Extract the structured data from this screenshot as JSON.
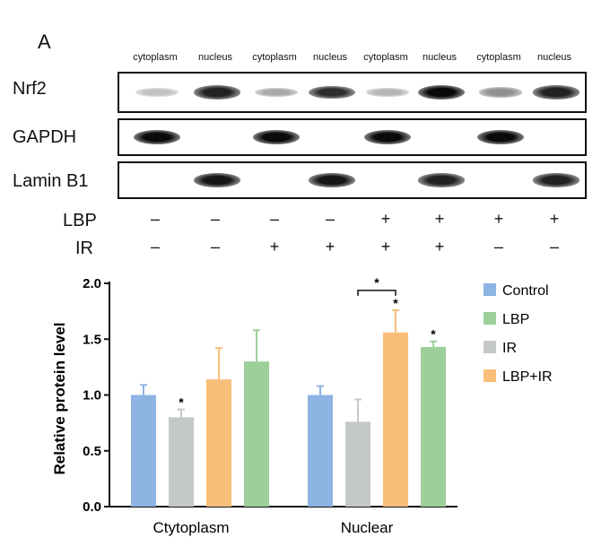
{
  "panel_label": "A",
  "lanes": [
    "cytoplasm",
    "nucleus",
    "cytoplasm",
    "nucleus",
    "cytoplasm",
    "nucleus",
    "cytoplasm",
    "nucleus"
  ],
  "blots": [
    {
      "label": "Nrf2",
      "band_intensity": [
        0.25,
        0.9,
        0.35,
        0.85,
        0.3,
        1.0,
        0.45,
        0.9
      ]
    },
    {
      "label": "GAPDH",
      "band_intensity": [
        1.0,
        0,
        1.0,
        0,
        1.0,
        0,
        1.0,
        0
      ]
    },
    {
      "label": "Lamin B1",
      "band_intensity": [
        0,
        0.95,
        0,
        0.95,
        0,
        0.9,
        0,
        0.9
      ]
    }
  ],
  "treatments": [
    {
      "label": "LBP",
      "signs": [
        "–",
        "–",
        "–",
        "–",
        "+",
        "+",
        "+",
        "+"
      ]
    },
    {
      "label": "IR",
      "signs": [
        "–",
        "–",
        "+",
        "+",
        "+",
        "+",
        "–",
        "–"
      ]
    }
  ],
  "colors": {
    "Control": "#8eb4e3",
    "LBP": "#9ccf9a",
    "IR": "#c4c8c9",
    "LBP+IR": "#f9bf7a",
    "axis": "#111111"
  },
  "chart_data": {
    "type": "bar",
    "categories": [
      "Ctytoplasm",
      "Nuclear"
    ],
    "ylabel": "Relative protein level",
    "ylim": [
      0,
      2.0
    ],
    "yticks": [
      "0.0",
      "0.5",
      "1.0",
      "1.5",
      "2.0"
    ],
    "ytick_values": [
      0,
      0.5,
      1.0,
      1.5,
      2.0
    ],
    "legend_position": "top-right",
    "series": [
      {
        "name": "Control",
        "values": [
          1.0,
          1.0
        ],
        "errors": [
          0.09,
          0.08
        ],
        "sig": [
          "",
          ""
        ]
      },
      {
        "name": "IR",
        "values": [
          0.8,
          0.76
        ],
        "errors": [
          0.07,
          0.2
        ],
        "sig": [
          "*",
          ""
        ]
      },
      {
        "name": "LBP+IR",
        "values": [
          1.14,
          1.56
        ],
        "errors": [
          0.28,
          0.2
        ],
        "sig": [
          "",
          "*"
        ]
      },
      {
        "name": "LBP",
        "values": [
          1.3,
          1.43
        ],
        "errors": [
          0.28,
          0.05
        ],
        "sig": [
          "",
          "*"
        ]
      }
    ],
    "legend_order": [
      "Control",
      "LBP",
      "IR",
      "LBP+IR"
    ],
    "bracket": {
      "label": "*",
      "group": "Nuclear",
      "from": "IR",
      "to": "LBP+IR"
    }
  }
}
